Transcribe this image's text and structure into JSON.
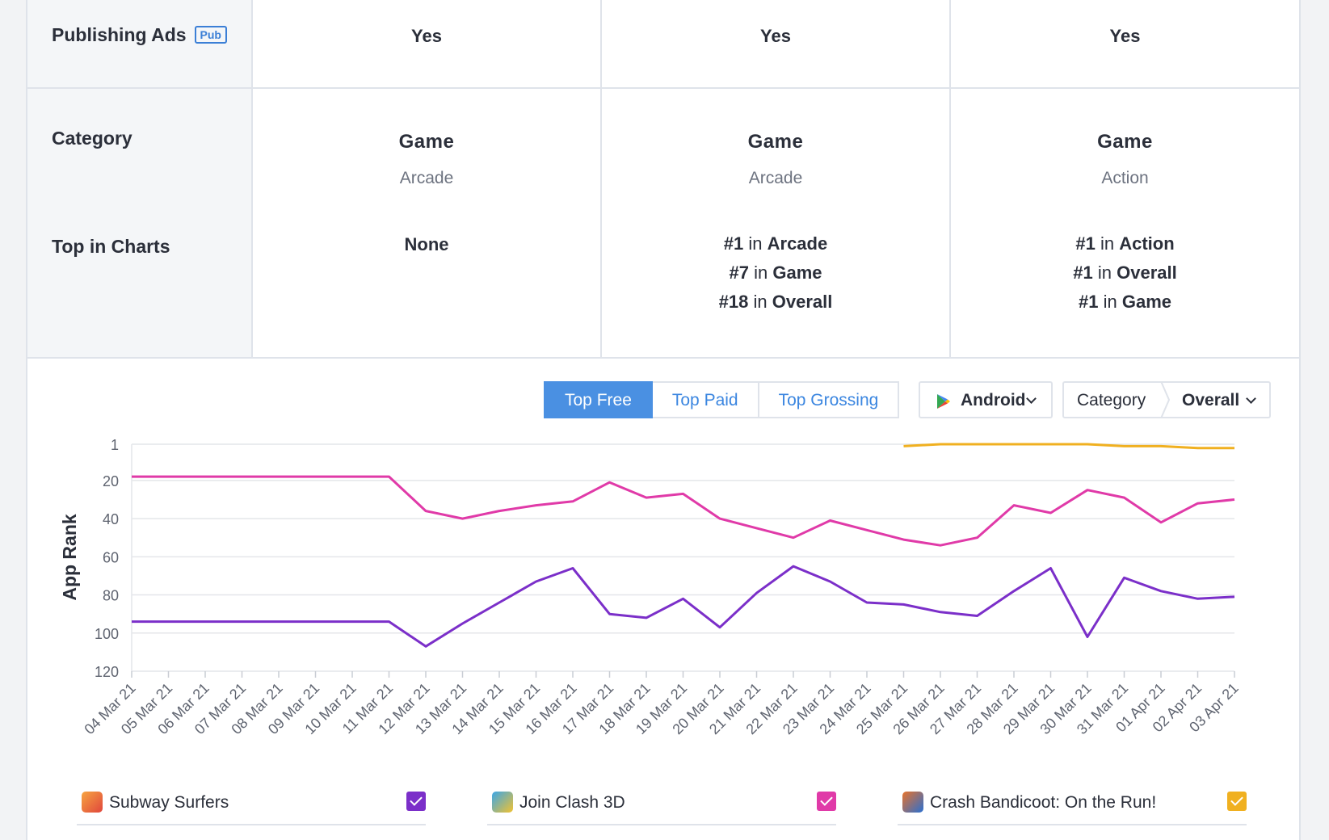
{
  "table": {
    "rows": {
      "publishing_ads": {
        "label": "Publishing Ads",
        "badge": "Pub"
      },
      "category": {
        "label": "Category"
      },
      "top_in_charts": {
        "label": "Top in Charts"
      }
    },
    "apps": [
      {
        "publishing_ads": "Yes",
        "category_main": "Game",
        "category_sub": "Arcade",
        "charts_none": "None",
        "charts": []
      },
      {
        "publishing_ads": "Yes",
        "category_main": "Game",
        "category_sub": "Arcade",
        "charts": [
          {
            "rank": "#1",
            "in": "in",
            "name": "Arcade"
          },
          {
            "rank": "#7",
            "in": "in",
            "name": "Game"
          },
          {
            "rank": "#18",
            "in": "in",
            "name": "Overall"
          }
        ]
      },
      {
        "publishing_ads": "Yes",
        "category_main": "Game",
        "category_sub": "Action",
        "charts": [
          {
            "rank": "#1",
            "in": "in",
            "name": "Action"
          },
          {
            "rank": "#1",
            "in": "in",
            "name": "Overall"
          },
          {
            "rank": "#1",
            "in": "in",
            "name": "Game"
          }
        ]
      }
    ]
  },
  "controls": {
    "chart_tabs": [
      "Top Free",
      "Top Paid",
      "Top Grossing"
    ],
    "active_tab": "Top Free",
    "platform": "Android",
    "category_label": "Category",
    "category_value": "Overall"
  },
  "chart_data": {
    "type": "line",
    "ylabel": "App Rank",
    "y_ticks": [
      1,
      20,
      40,
      60,
      80,
      100,
      120
    ],
    "ylim": [
      1,
      120
    ],
    "y_inverted": true,
    "x": [
      "04 Mar 21",
      "05 Mar 21",
      "06 Mar 21",
      "07 Mar 21",
      "08 Mar 21",
      "09 Mar 21",
      "10 Mar 21",
      "11 Mar 21",
      "12 Mar 21",
      "13 Mar 21",
      "14 Mar 21",
      "15 Mar 21",
      "16 Mar 21",
      "17 Mar 21",
      "18 Mar 21",
      "19 Mar 21",
      "20 Mar 21",
      "21 Mar 21",
      "22 Mar 21",
      "23 Mar 21",
      "24 Mar 21",
      "25 Mar 21",
      "26 Mar 21",
      "27 Mar 21",
      "28 Mar 21",
      "29 Mar 21",
      "30 Mar 21",
      "31 Mar 21",
      "01 Apr 21",
      "02 Apr 21",
      "03 Apr 21"
    ],
    "series": [
      {
        "name": "Subway Surfers",
        "color": "#7b2fc9",
        "values": [
          94,
          94,
          94,
          94,
          94,
          94,
          94,
          94,
          107,
          95,
          84,
          73,
          66,
          90,
          92,
          82,
          97,
          79,
          65,
          73,
          84,
          85,
          89,
          91,
          78,
          66,
          102,
          71,
          78,
          82,
          81
        ]
      },
      {
        "name": "Join Clash 3D",
        "color": "#e03aa8",
        "values": [
          18,
          18,
          18,
          18,
          18,
          18,
          18,
          18,
          36,
          40,
          36,
          33,
          31,
          21,
          29,
          27,
          40,
          45,
          50,
          41,
          46,
          51,
          54,
          50,
          33,
          37,
          25,
          29,
          42,
          32,
          30
        ]
      },
      {
        "name": "Crash Bandicoot: On the Run!",
        "color": "#f0b020",
        "values": [
          null,
          null,
          null,
          null,
          null,
          null,
          null,
          null,
          null,
          null,
          null,
          null,
          null,
          null,
          null,
          null,
          null,
          null,
          null,
          null,
          null,
          2,
          1,
          1,
          1,
          1,
          1,
          2,
          2,
          3,
          3
        ]
      }
    ],
    "grid": true
  },
  "legend": [
    {
      "name": "Subway Surfers",
      "color": "#7b2fc9",
      "checked": true
    },
    {
      "name": "Join Clash 3D",
      "color": "#e03aa8",
      "checked": true
    },
    {
      "name": "Crash Bandicoot: On the Run!",
      "color": "#f0b020",
      "checked": true
    }
  ]
}
